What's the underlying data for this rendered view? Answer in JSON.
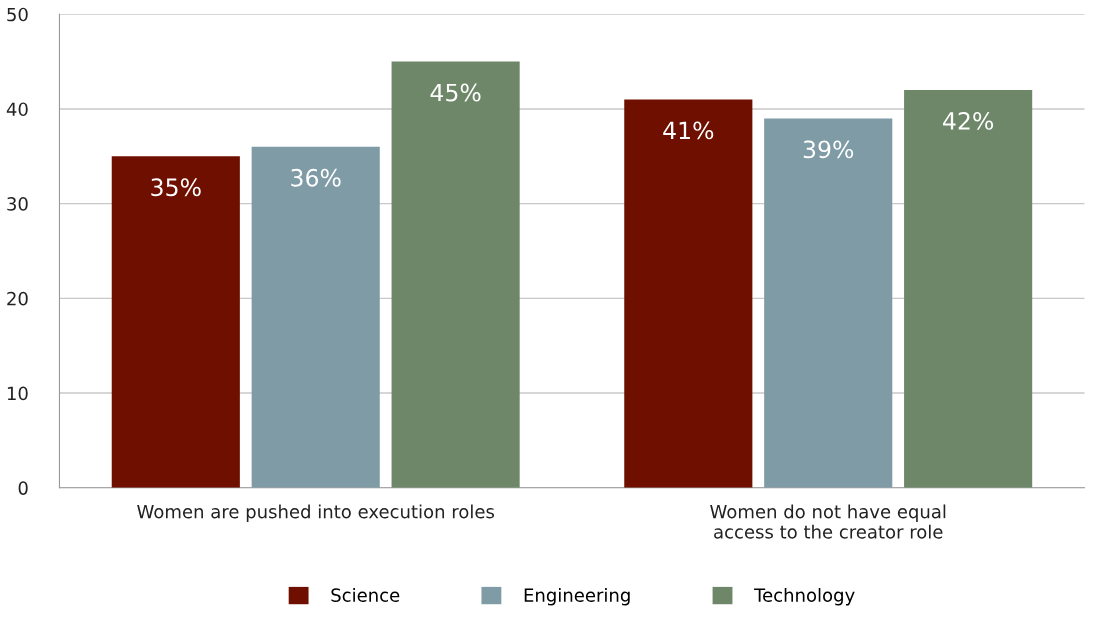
{
  "chart_data": {
    "type": "bar",
    "categories": [
      "Women are pushed into execution roles",
      "Women do not have equal\naccess to the creator role"
    ],
    "series": [
      {
        "name": "Science",
        "color": "#6e0f00",
        "values": [
          35,
          41
        ],
        "value_labels": [
          "35%",
          "41%"
        ]
      },
      {
        "name": "Engineering",
        "color": "#7f9ba6",
        "values": [
          36,
          39
        ],
        "value_labels": [
          "36%",
          "39%"
        ]
      },
      {
        "name": "Technology",
        "color": "#6e8769",
        "values": [
          45,
          42
        ],
        "value_labels": [
          "45%",
          "42%"
        ]
      }
    ],
    "ylim": [
      0,
      50
    ],
    "yticks": [
      0,
      10,
      20,
      30,
      40,
      50
    ],
    "grid": "y",
    "legend": "bottom"
  }
}
